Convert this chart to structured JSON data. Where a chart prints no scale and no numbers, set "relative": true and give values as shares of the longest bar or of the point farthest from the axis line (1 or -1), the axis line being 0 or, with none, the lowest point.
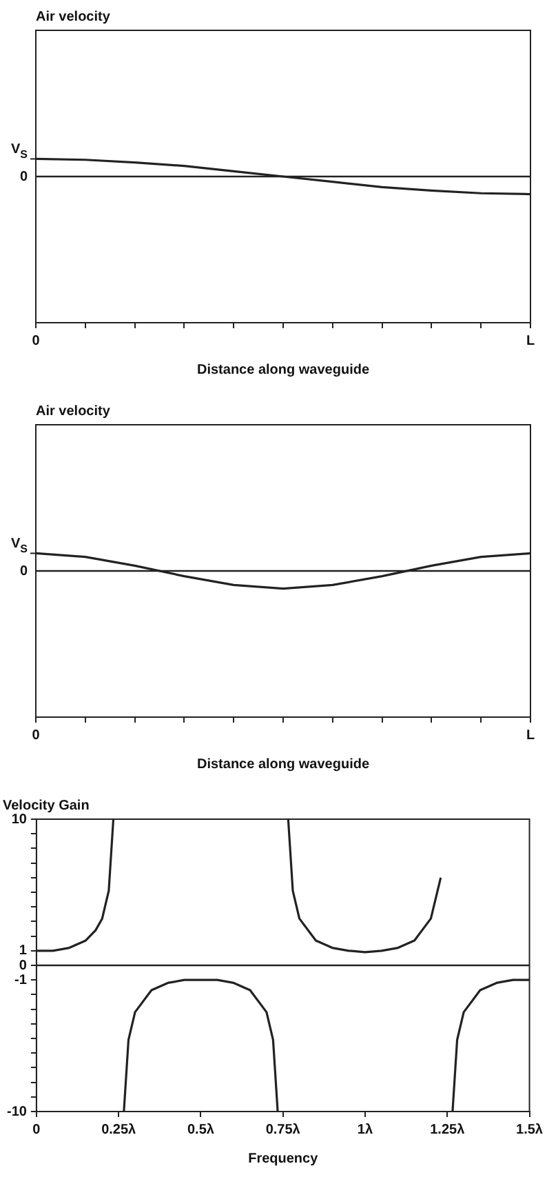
{
  "chart_data": [
    {
      "type": "line",
      "title": "Air velocity",
      "xlabel": "Distance along waveguide",
      "categories": [
        "0",
        null,
        null,
        null,
        null,
        null,
        null,
        null,
        null,
        null,
        "L"
      ],
      "series": [
        {
          "color": "#222222",
          "values": [
            1,
            0.95,
            0.8,
            0.6,
            0.3,
            0,
            -0.3,
            -0.6,
            -0.8,
            -0.95,
            -1
          ]
        }
      ],
      "relative": true,
      "annotations": [
        "V$_{S}$"
      ],
      "ref_lines": [
        {
          "axis": "y",
          "value": 0,
          "label": "0"
        }
      ],
      "grid": false,
      "legend": false,
      "marker": "none"
    },
    {
      "type": "line",
      "title": "Air velocity",
      "xlabel": "Distance along waveguide",
      "categories": [
        "0",
        null,
        null,
        null,
        null,
        null,
        null,
        null,
        null,
        null,
        "L"
      ],
      "series": [
        {
          "color": "#222222",
          "values": [
            1,
            0.8,
            0.3,
            -0.3,
            -0.8,
            -1,
            -0.8,
            -0.3,
            0.3,
            0.8,
            1
          ]
        }
      ],
      "relative": true,
      "annotations": [
        "V$_{S}$"
      ],
      "ref_lines": [
        {
          "axis": "y",
          "value": 0,
          "label": "0"
        }
      ],
      "grid": false,
      "legend": false,
      "marker": "none"
    },
    {
      "type": "line",
      "title": "Velocity Gain",
      "xlabel": "Frequency",
      "series": [
        {
          "color": "#222222",
          "x": [
            0,
            0.05,
            0.1,
            0.15,
            0.18,
            0.2,
            0.22,
            0.234
          ],
          "values": [
            1,
            1,
            1.2,
            1.7,
            2.4,
            3.2,
            5.1,
            10
          ]
        },
        {
          "color": "#222222",
          "x": [
            0.266,
            0.28,
            0.3,
            0.35,
            0.4,
            0.45,
            0.5,
            0.55,
            0.6,
            0.65,
            0.7,
            0.72,
            0.734
          ],
          "values": [
            -10,
            -5.1,
            -3.2,
            -1.7,
            -1.2,
            -1,
            -1,
            -1,
            -1.2,
            -1.7,
            -3.2,
            -5.1,
            -10
          ]
        },
        {
          "color": "#222222",
          "x": [
            0.766,
            0.78,
            0.8,
            0.85,
            0.9,
            0.95,
            1,
            1.05,
            1.1,
            1.15,
            1.2,
            1.23
          ],
          "values": [
            10,
            5.1,
            3.2,
            1.7,
            1.2,
            1,
            0.9,
            1,
            1.2,
            1.7,
            3.2,
            6
          ]
        },
        {
          "color": "#222222",
          "x": [
            1.266,
            1.28,
            1.3,
            1.35,
            1.4,
            1.45,
            1.5
          ],
          "values": [
            -10,
            -5.1,
            -3.2,
            -1.7,
            -1.2,
            -1,
            -1
          ]
        }
      ],
      "xlim": [
        0,
        1.5
      ],
      "xticks": [
        0,
        {
          "value": 0.25,
          "label": "0.25λ"
        },
        {
          "value": 0.5,
          "label": "0.5λ"
        },
        {
          "value": 0.75,
          "label": "0.75λ"
        },
        {
          "value": 1,
          "label": "1λ"
        },
        {
          "value": 1.25,
          "label": "1.25λ"
        },
        {
          "value": 1.5,
          "label": "1.5λ"
        }
      ],
      "ylim": [
        -10,
        10
      ],
      "yticks": [
        -10,
        {
          "value": -9,
          "label": null
        },
        {
          "value": -8,
          "label": null
        },
        {
          "value": -7,
          "label": null
        },
        {
          "value": -6,
          "label": null
        },
        {
          "value": -5,
          "label": null
        },
        {
          "value": -4,
          "label": null
        },
        {
          "value": -3,
          "label": null
        },
        {
          "value": -2,
          "label": null
        },
        -1,
        0,
        1,
        {
          "value": 2,
          "label": null
        },
        {
          "value": 3,
          "label": null
        },
        {
          "value": 4,
          "label": null
        },
        {
          "value": 5,
          "label": null
        },
        {
          "value": 6,
          "label": null
        },
        {
          "value": 7,
          "label": null
        },
        {
          "value": 8,
          "label": null
        },
        {
          "value": 9,
          "label": null
        },
        10
      ],
      "ref_lines": [
        {
          "axis": "y",
          "value": 0
        }
      ],
      "grid": false,
      "legend": false,
      "marker": "none"
    }
  ]
}
